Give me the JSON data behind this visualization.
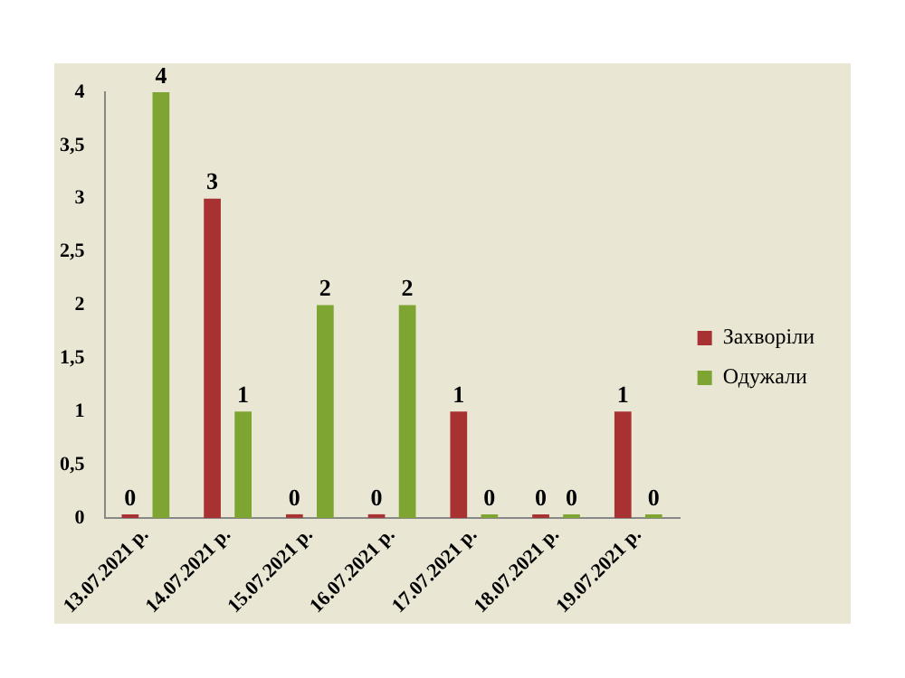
{
  "chart_data": {
    "type": "bar",
    "categories": [
      "13.07.2021 р.",
      "14.07.2021 р.",
      "15.07.2021 р.",
      "16.07.2021 р.",
      "17.07.2021 р.",
      "18.07.2021 р.",
      "19.07.2021 р."
    ],
    "series": [
      {
        "name": "Захворіли",
        "color": "#a83232",
        "values": [
          0,
          3,
          0,
          0,
          1,
          0,
          1
        ]
      },
      {
        "name": "Одужали",
        "color": "#7ea432",
        "values": [
          4,
          1,
          2,
          2,
          0,
          0,
          0
        ]
      }
    ],
    "ylim": [
      0,
      4
    ],
    "yticks": [
      0,
      {
        "value": 0.5,
        "label": "0,5"
      },
      1,
      {
        "value": 1.5,
        "label": "1,5"
      },
      2,
      {
        "value": 2.5,
        "label": "2,5"
      },
      3,
      {
        "value": 3.5,
        "label": "3,5"
      },
      4
    ],
    "grid": false,
    "legend": "right",
    "data_labels": true
  }
}
